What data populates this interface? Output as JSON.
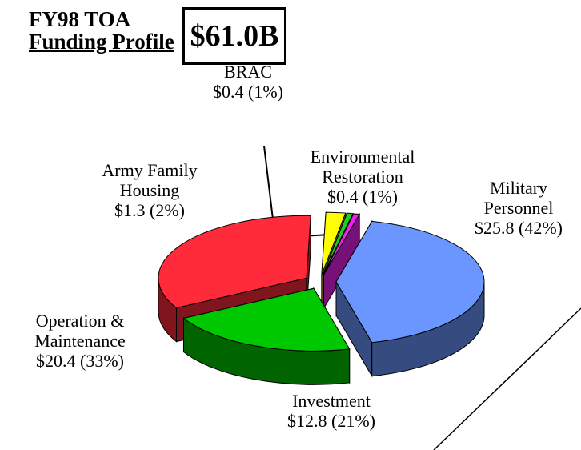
{
  "chart_data": {
    "type": "pie3d",
    "title": "FY98 TOA",
    "subtitle": "Funding Profile",
    "annotation": "$61.0B",
    "categories": [
      "Military Personnel",
      "Investment",
      "Operation & Maintenance",
      "Army Family Housing",
      "BRAC",
      "Environmental Restoration"
    ],
    "values": [
      25.8,
      12.8,
      20.4,
      1.3,
      0.4,
      0.4
    ],
    "value_labels": [
      "$25.8 (42%)",
      "$12.8 (21%)",
      "$20.4 (33%)",
      "$1.3 (2%)",
      "$0.4 (1%)",
      "$0.4 (1%)"
    ],
    "colors": [
      "#6b96ff",
      "#00c800",
      "#ff2a3a",
      "#ffff00",
      "#22cc22",
      "#ee22ee"
    ]
  }
}
